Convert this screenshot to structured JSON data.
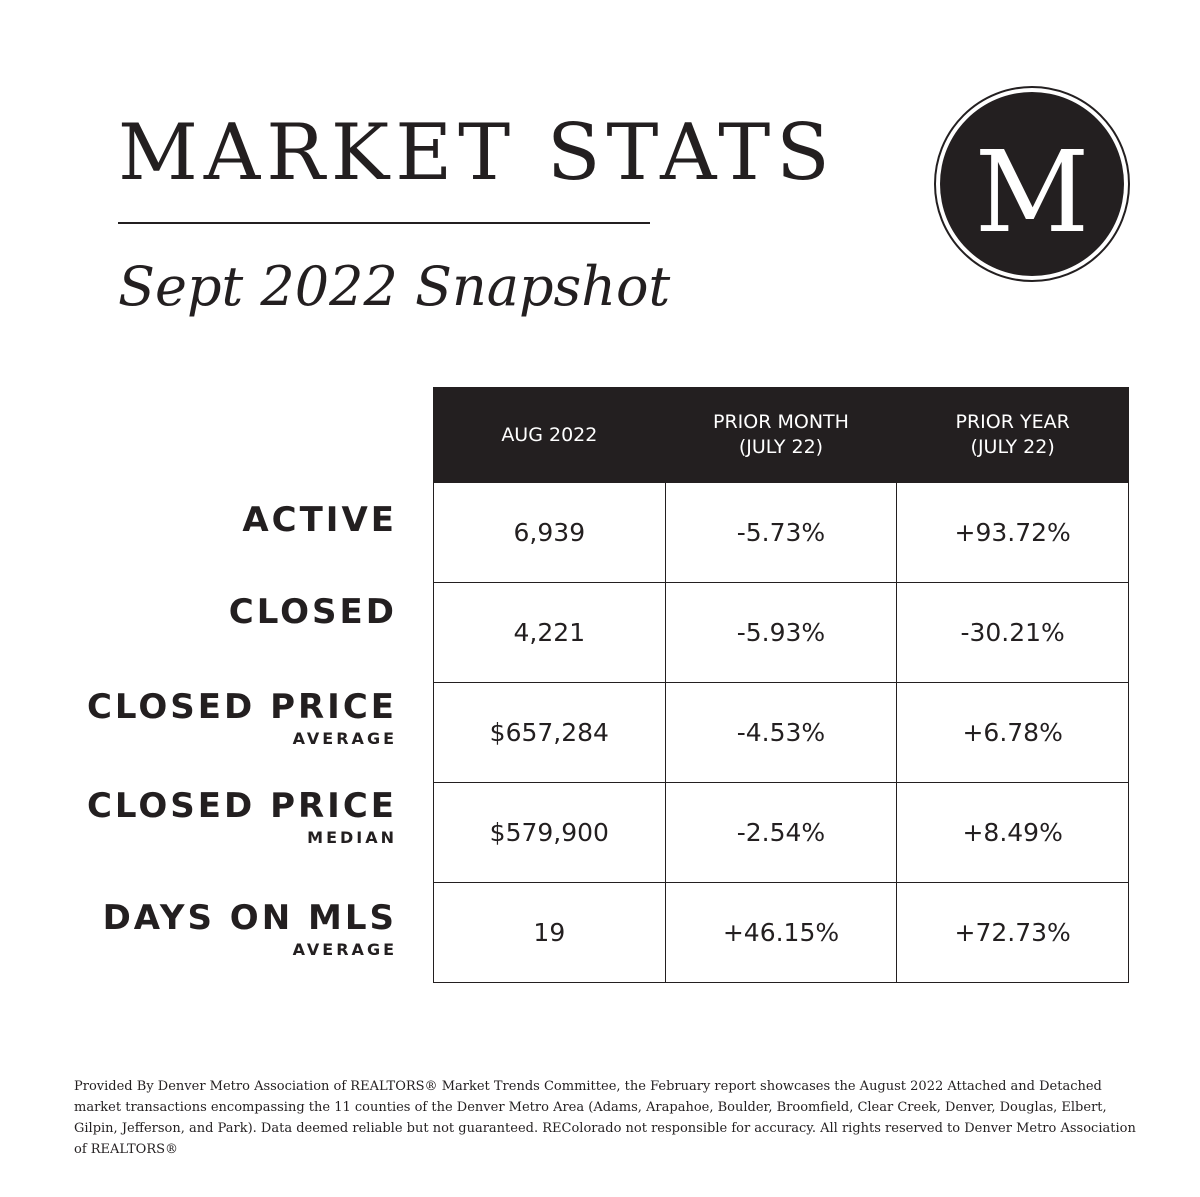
{
  "header": {
    "title": "MARKET STATS",
    "subtitle": "Sept 2022 Snapshot",
    "logo_letter": "M"
  },
  "table": {
    "columns": [
      {
        "line1": "AUG 2022",
        "line2": ""
      },
      {
        "line1": "PRIOR MONTH",
        "line2": "(JULY 22)"
      },
      {
        "line1": "PRIOR YEAR",
        "line2": "(JULY 22)"
      }
    ],
    "rows": [
      {
        "label": "ACTIVE",
        "sublabel": "",
        "values": [
          "6,939",
          "-5.73%",
          "+93.72%"
        ]
      },
      {
        "label": "CLOSED",
        "sublabel": "",
        "values": [
          "4,221",
          "-5.93%",
          "-30.21%"
        ]
      },
      {
        "label": "CLOSED PRICE",
        "sublabel": "AVERAGE",
        "values": [
          "$657,284",
          "-4.53%",
          "+6.78%"
        ]
      },
      {
        "label": "CLOSED PRICE",
        "sublabel": "MEDIAN",
        "values": [
          "$579,900",
          "-2.54%",
          "+8.49%"
        ]
      },
      {
        "label": "DAYS ON MLS",
        "sublabel": "AVERAGE",
        "values": [
          "19",
          "+46.15%",
          "+72.73%"
        ]
      }
    ]
  },
  "footnote": "Provided By Denver Metro Association of REALTORS® Market Trends Committee, the February report showcases the August 2022 Attached and Detached market transactions encompassing the 11 counties of the Denver Metro Area (Adams, Arapahoe, Boulder, Broomfield, Clear Creek, Denver, Douglas, Elbert, Gilpin, Jefferson, and Park). Data deemed reliable but not guaranteed. REColorado not responsible for accuracy. All rights reserved to Denver Metro Association of REALTORS®",
  "colors": {
    "ink": "#231f20",
    "background": "#ffffff"
  }
}
